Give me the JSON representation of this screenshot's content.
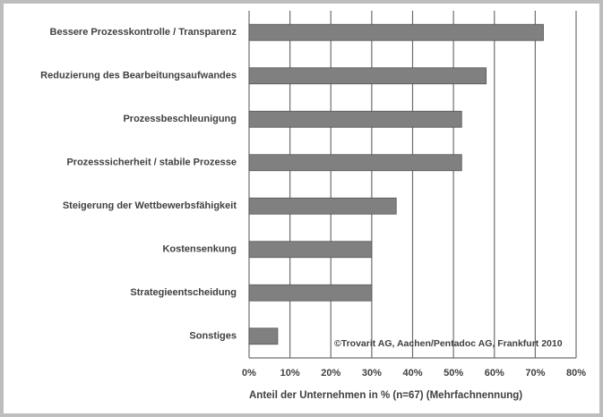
{
  "chart_data": {
    "type": "barh",
    "categories": [
      "Bessere Prozesskontrolle  / Transparenz",
      "Reduzierung des Bearbeitungsaufwandes",
      "Prozessbeschleunigung",
      "Prozesssicherheit  / stabile Prozesse",
      "Steigerung der Wettbewerbsfähigkeit",
      "Kostensenkung",
      "Strategieentscheidung",
      "Sonstiges"
    ],
    "values": [
      72,
      58,
      52,
      52,
      36,
      30,
      30,
      7
    ],
    "color": "#808080",
    "xlim": [
      0,
      80
    ],
    "xticks": [
      {
        "value": 0,
        "label": "0%"
      },
      {
        "value": 10,
        "label": "10%"
      },
      {
        "value": 20,
        "label": "20%"
      },
      {
        "value": 30,
        "label": "30%"
      },
      {
        "value": 40,
        "label": "40%"
      },
      {
        "value": 50,
        "label": "50%"
      },
      {
        "value": 60,
        "label": "60%"
      },
      {
        "value": 70,
        "label": "70%"
      },
      {
        "value": 80,
        "label": "80%"
      }
    ],
    "xlabel": "Anteil der Unternehmen  in % (n=67) (Mehrfachnennung)",
    "annotation": "©Trovarit AG, Aachen/Pentadoc AG, Frankfurt 2010",
    "grid": true
  }
}
